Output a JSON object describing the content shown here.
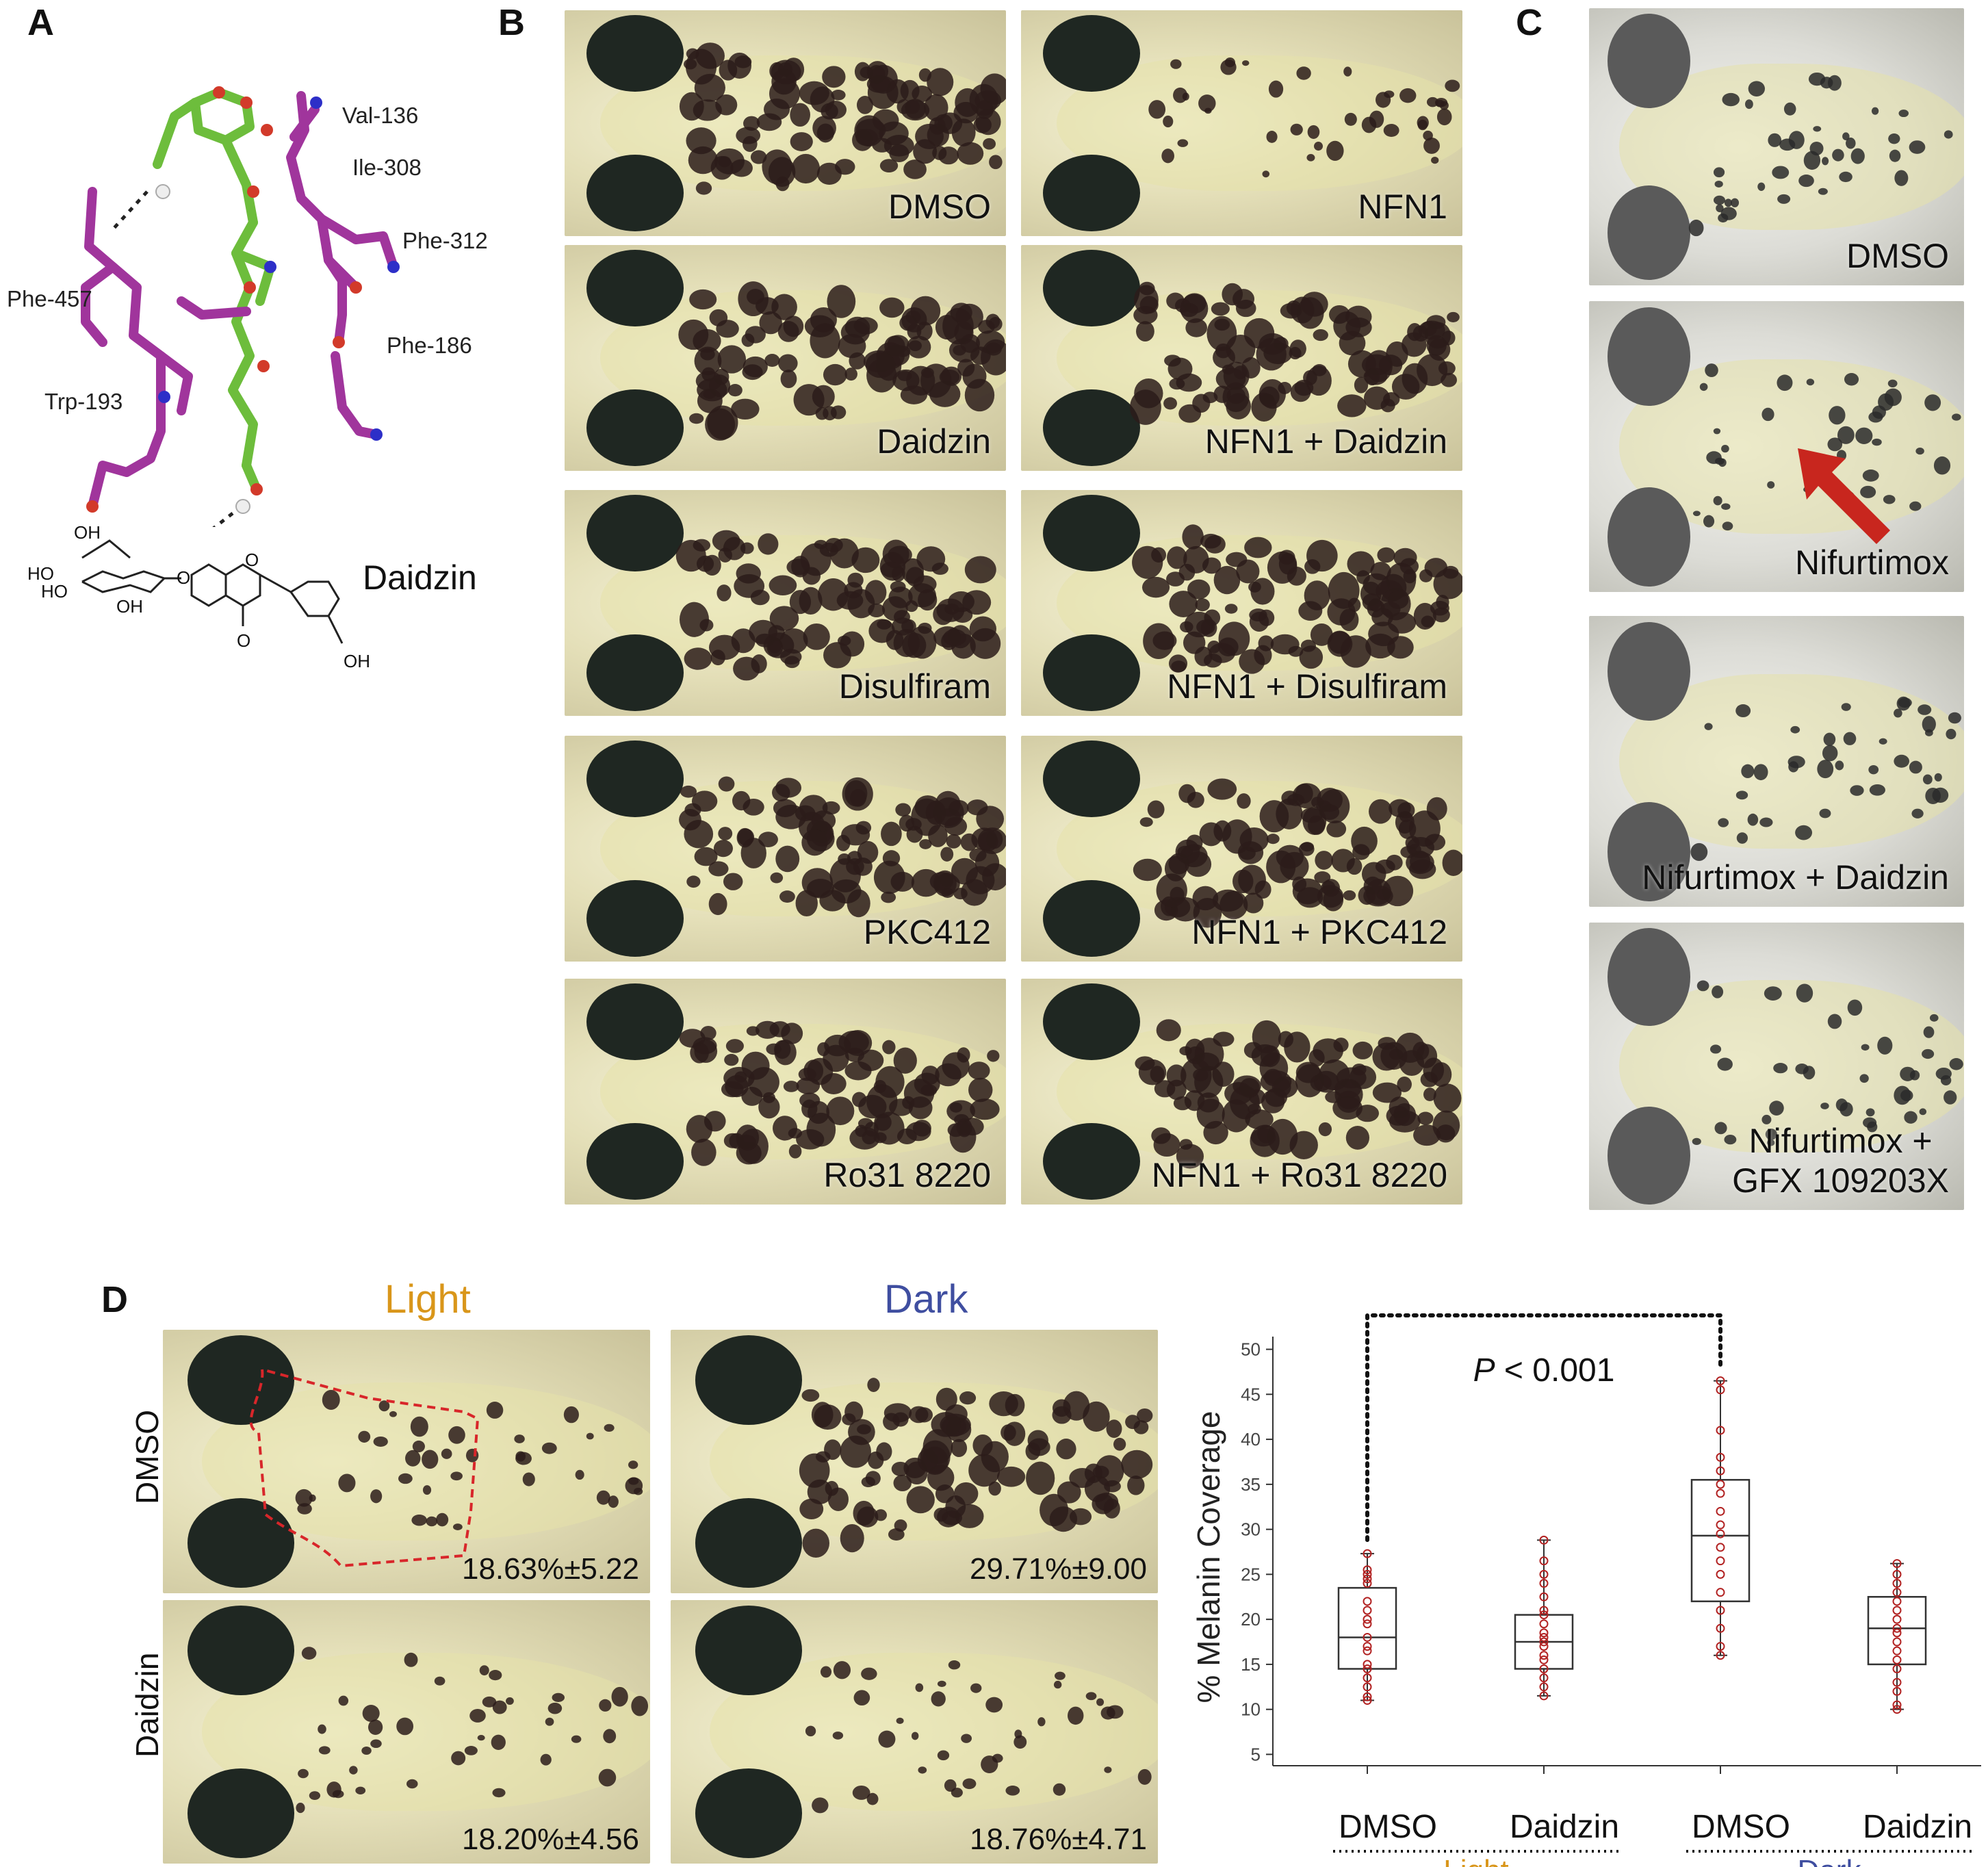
{
  "panels": {
    "A": "A",
    "B": "B",
    "C": "C",
    "D": "D"
  },
  "panel_a": {
    "residues": [
      "Val-136",
      "Ile-308",
      "Phe-312",
      "Phe-457",
      "Phe-186",
      "Trp-193"
    ],
    "compound_label": "Daidzin",
    "structure_labels": {
      "oh_top": "OH",
      "ho1": "HO",
      "ho2": "HO",
      "oh_mid": "OH",
      "o_ring": "O",
      "o_keto": "O",
      "o_link": "O",
      "oh_right": "OH"
    },
    "colors": {
      "ligand": "#6dbd3c",
      "residue": "#a0359c",
      "nitrogen": "#2d2fc8",
      "oxygen": "#d23a2a"
    }
  },
  "panel_b": {
    "images": [
      {
        "caption": "DMSO"
      },
      {
        "caption": "NFN1"
      },
      {
        "caption": "Daidzin"
      },
      {
        "caption": "NFN1 + Daidzin"
      },
      {
        "caption": "Disulfiram"
      },
      {
        "caption": "NFN1 + Disulfiram"
      },
      {
        "caption": "PKC412"
      },
      {
        "caption": "NFN1 + PKC412"
      },
      {
        "caption": "Ro31 8220"
      },
      {
        "caption": "NFN1 + Ro31 8220"
      }
    ]
  },
  "panel_c": {
    "images": [
      {
        "caption": "DMSO"
      },
      {
        "caption": "Nifurtimox"
      },
      {
        "caption": "Nifurtimox + Daidzin"
      },
      {
        "caption_line1": "Nifurtimox +",
        "caption_line2": "GFX 109203X"
      }
    ],
    "arrow_color": "#c8261e"
  },
  "panel_d": {
    "col_light": "Light",
    "col_dark": "Dark",
    "row_dmso": "DMSO",
    "row_daidzin": "Daidzin",
    "light_color": "#d9961a",
    "dark_color": "#3f4ea0",
    "percentages": {
      "dmso_light": "18.63%±5.22",
      "dmso_dark": "29.71%±9.00",
      "daidzin_light": "18.20%±4.56",
      "daidzin_dark": "18.76%±4.71"
    }
  },
  "chart_data": {
    "type": "box",
    "ylabel": "% Melanin Coverage",
    "ylim": [
      5,
      50
    ],
    "yticks": [
      5,
      10,
      15,
      20,
      25,
      30,
      35,
      40,
      45,
      50
    ],
    "categories": [
      "DMSO",
      "Daidzin",
      "DMSO",
      "Daidzin"
    ],
    "groups": [
      {
        "label": "Light",
        "color": "#d9961a",
        "members": [
          0,
          1
        ]
      },
      {
        "label": "Dark",
        "color": "#3f4ea0",
        "members": [
          2,
          3
        ]
      }
    ],
    "significance": {
      "label_italic": "P",
      "label_rest": " < 0.001",
      "between": [
        0,
        2
      ]
    },
    "point_color": "#b22222",
    "boxes": [
      {
        "whisker_low": 11,
        "q1": 14.5,
        "median": 18,
        "q3": 23.5,
        "whisker_high": 27.3,
        "points": [
          11,
          11.4,
          12.5,
          13.5,
          14.5,
          15,
          16.5,
          17,
          18,
          19.5,
          20,
          21,
          22,
          24,
          24.5,
          25,
          25.5,
          27.3
        ]
      },
      {
        "whisker_low": 11.5,
        "q1": 14.5,
        "median": 17.5,
        "q3": 20.5,
        "whisker_high": 28.8,
        "points": [
          11.5,
          12.5,
          13.5,
          14.5,
          15.5,
          16,
          17,
          17.5,
          18,
          18.5,
          19.5,
          20.5,
          21,
          22.5,
          24,
          25,
          26.5,
          28.8
        ]
      },
      {
        "whisker_low": 16,
        "q1": 22,
        "median": 29.3,
        "q3": 35.5,
        "whisker_high": 46.5,
        "points": [
          16,
          17,
          19,
          21,
          23,
          25,
          26.5,
          28,
          29.5,
          30.5,
          32,
          34,
          35,
          36.5,
          38,
          41,
          45.5,
          46.5
        ]
      },
      {
        "whisker_low": 10,
        "q1": 15,
        "median": 19,
        "q3": 22.5,
        "whisker_high": 26.2,
        "points": [
          10,
          10.5,
          12,
          13,
          14.5,
          15.5,
          16.5,
          17.5,
          18.5,
          19,
          20,
          21,
          22,
          23,
          24,
          25,
          26.2
        ]
      }
    ]
  }
}
